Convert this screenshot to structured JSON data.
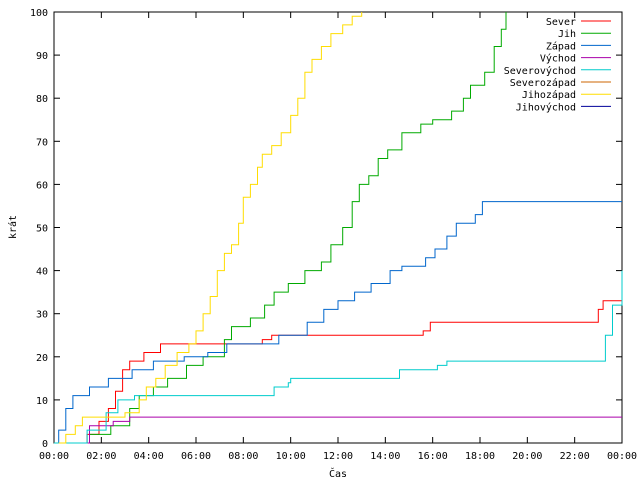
{
  "chart_data": {
    "type": "line",
    "title": "",
    "xlabel": "Čas",
    "ylabel": "krát",
    "xlim": [
      0,
      24
    ],
    "ylim": [
      0,
      100
    ],
    "x_ticks": [
      "00:00",
      "02:00",
      "04:00",
      "06:00",
      "08:00",
      "10:00",
      "12:00",
      "14:00",
      "16:00",
      "18:00",
      "20:00",
      "22:00",
      "00:00"
    ],
    "y_ticks": [
      "0",
      "10",
      "20",
      "30",
      "40",
      "50",
      "60",
      "70",
      "80",
      "90",
      "100"
    ],
    "legend_position": "top-right",
    "grid": false,
    "series": [
      {
        "name": "Sever",
        "color": "#ff0000",
        "points": [
          [
            0.8,
            0
          ],
          [
            1.4,
            2
          ],
          [
            1.9,
            5
          ],
          [
            2.3,
            8
          ],
          [
            2.6,
            12
          ],
          [
            2.9,
            17
          ],
          [
            3.2,
            19
          ],
          [
            3.8,
            21
          ],
          [
            4.5,
            23
          ],
          [
            5.5,
            23
          ],
          [
            7.5,
            23
          ],
          [
            8.8,
            24
          ],
          [
            9.2,
            25
          ],
          [
            12,
            25
          ],
          [
            15,
            25
          ],
          [
            15.6,
            26
          ],
          [
            15.9,
            28
          ],
          [
            18,
            28
          ],
          [
            22.8,
            28
          ],
          [
            23.0,
            31
          ],
          [
            23.2,
            33
          ],
          [
            24,
            33
          ]
        ]
      },
      {
        "name": "Jih",
        "color": "#00aa00",
        "points": [
          [
            0.7,
            0
          ],
          [
            1.5,
            2
          ],
          [
            2.4,
            4
          ],
          [
            3.2,
            8
          ],
          [
            3.6,
            11
          ],
          [
            4.2,
            13
          ],
          [
            4.8,
            15
          ],
          [
            5.6,
            18
          ],
          [
            6.3,
            20
          ],
          [
            7.2,
            24
          ],
          [
            7.5,
            27
          ],
          [
            8.3,
            29
          ],
          [
            8.9,
            32
          ],
          [
            9.3,
            35
          ],
          [
            9.9,
            37
          ],
          [
            10.6,
            40
          ],
          [
            11.3,
            42
          ],
          [
            11.7,
            46
          ],
          [
            12.2,
            50
          ],
          [
            12.6,
            56
          ],
          [
            12.9,
            60
          ],
          [
            13.3,
            62
          ],
          [
            13.7,
            66
          ],
          [
            14.1,
            68
          ],
          [
            14.7,
            72
          ],
          [
            15.5,
            74
          ],
          [
            16.0,
            75
          ],
          [
            16.8,
            77
          ],
          [
            17.3,
            80
          ],
          [
            17.6,
            83
          ],
          [
            18.2,
            86
          ],
          [
            18.6,
            92
          ],
          [
            18.9,
            96
          ],
          [
            19.1,
            100
          ]
        ]
      },
      {
        "name": "Západ",
        "color": "#0066cc",
        "points": [
          [
            0,
            0
          ],
          [
            0.2,
            3
          ],
          [
            0.5,
            8
          ],
          [
            0.8,
            11
          ],
          [
            1.5,
            13
          ],
          [
            2.3,
            15
          ],
          [
            3.3,
            17
          ],
          [
            4.2,
            19
          ],
          [
            5.5,
            20
          ],
          [
            6.5,
            21
          ],
          [
            7.3,
            23
          ],
          [
            9.2,
            23
          ],
          [
            9.5,
            25
          ],
          [
            10.3,
            25
          ],
          [
            10.7,
            28
          ],
          [
            11.4,
            31
          ],
          [
            12.0,
            33
          ],
          [
            12.7,
            35
          ],
          [
            13.4,
            37
          ],
          [
            14.2,
            40
          ],
          [
            14.7,
            41
          ],
          [
            15.7,
            43
          ],
          [
            16.1,
            45
          ],
          [
            16.6,
            48
          ],
          [
            17.0,
            51
          ],
          [
            17.8,
            53
          ],
          [
            18.1,
            56
          ],
          [
            24,
            56
          ]
        ]
      },
      {
        "name": "Východ",
        "color": "#aa00aa",
        "points": [
          [
            0,
            0
          ],
          [
            1.2,
            0
          ],
          [
            1.5,
            4
          ],
          [
            2.5,
            5
          ],
          [
            3.2,
            6
          ],
          [
            24,
            6
          ]
        ]
      },
      {
        "name": "Severovýchod",
        "color": "#00cccc",
        "points": [
          [
            0,
            0
          ],
          [
            0.9,
            0
          ],
          [
            1.4,
            3
          ],
          [
            2.2,
            7
          ],
          [
            2.7,
            10
          ],
          [
            3.4,
            11
          ],
          [
            6.0,
            11
          ],
          [
            9.1,
            11
          ],
          [
            9.3,
            13
          ],
          [
            9.9,
            14
          ],
          [
            10.0,
            15
          ],
          [
            13.5,
            15
          ],
          [
            14.6,
            17
          ],
          [
            16.2,
            18
          ],
          [
            16.6,
            19
          ],
          [
            18.0,
            19
          ],
          [
            21.8,
            19
          ],
          [
            23.0,
            19
          ],
          [
            23.3,
            25
          ],
          [
            23.6,
            32
          ],
          [
            24,
            40
          ]
        ]
      },
      {
        "name": "Severozápad",
        "color": "#cc6600",
        "points": []
      },
      {
        "name": "Jihozápad",
        "color": "#ffdd00",
        "points": [
          [
            0.2,
            0
          ],
          [
            0.5,
            2
          ],
          [
            0.9,
            4
          ],
          [
            1.2,
            6
          ],
          [
            2.2,
            6
          ],
          [
            3.0,
            7
          ],
          [
            3.6,
            10
          ],
          [
            3.9,
            13
          ],
          [
            4.3,
            15
          ],
          [
            4.7,
            18
          ],
          [
            5.2,
            21
          ],
          [
            5.7,
            23
          ],
          [
            6.0,
            26
          ],
          [
            6.3,
            30
          ],
          [
            6.6,
            34
          ],
          [
            6.9,
            40
          ],
          [
            7.2,
            44
          ],
          [
            7.5,
            46
          ],
          [
            7.8,
            51
          ],
          [
            8.0,
            57
          ],
          [
            8.3,
            60
          ],
          [
            8.6,
            64
          ],
          [
            8.8,
            67
          ],
          [
            9.2,
            69
          ],
          [
            9.6,
            72
          ],
          [
            10.0,
            76
          ],
          [
            10.3,
            80
          ],
          [
            10.6,
            86
          ],
          [
            10.9,
            89
          ],
          [
            11.3,
            92
          ],
          [
            11.7,
            95
          ],
          [
            12.2,
            97
          ],
          [
            12.6,
            99
          ],
          [
            13.0,
            100
          ]
        ]
      },
      {
        "name": "Jihovýchod",
        "color": "#000099",
        "points": []
      }
    ]
  }
}
